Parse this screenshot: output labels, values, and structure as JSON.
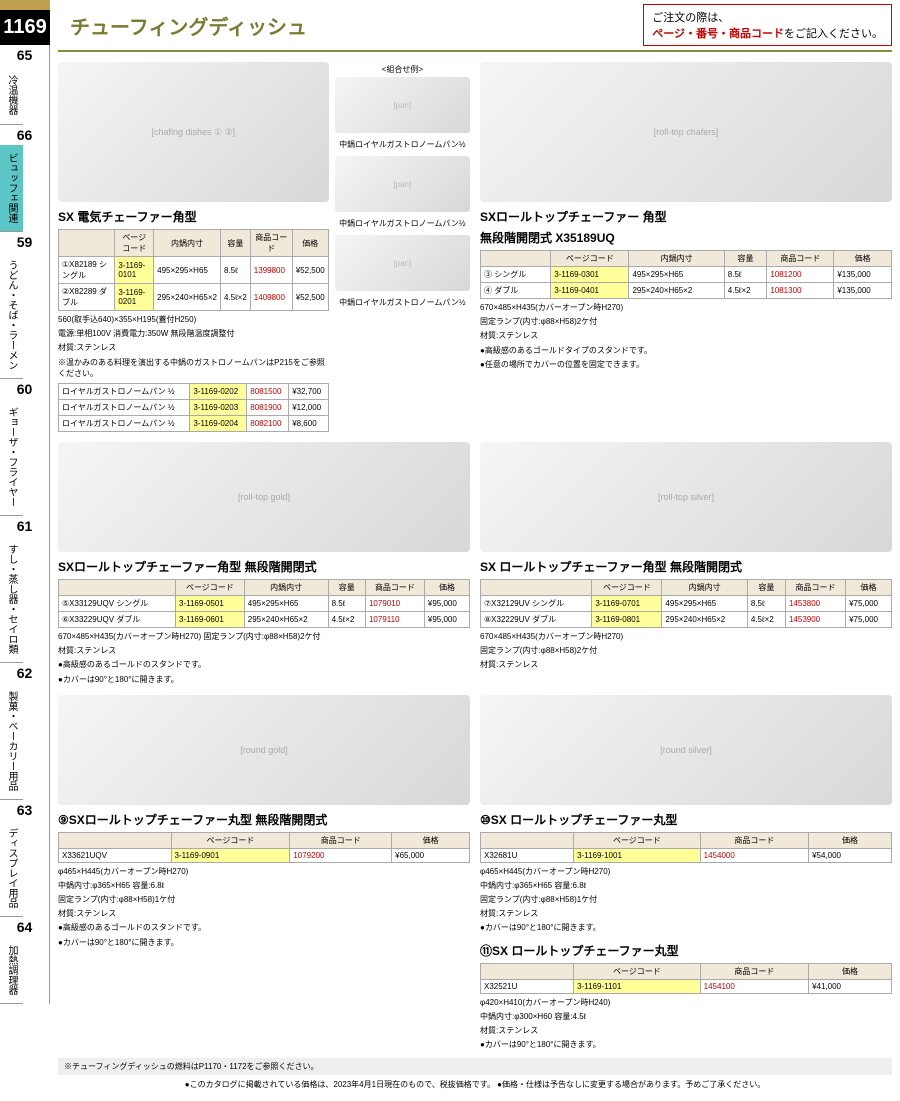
{
  "page_number": "1169",
  "header_title": "チューフィングディッシュ",
  "header_note_pre": "ご注文の際は、",
  "header_note_red": "ページ・番号・商品コード",
  "header_note_post": "をご記入ください。",
  "sidebar": [
    {
      "num": "65",
      "label": "冷温機器"
    },
    {
      "num": "66",
      "label": "ビュッフェ関連",
      "active": true
    },
    {
      "num": "59",
      "label": "うどん・そば・ラーメン"
    },
    {
      "num": "60",
      "label": "ギョーザ・フライヤー"
    },
    {
      "num": "61",
      "label": "すし・蒸し器・セイロ類"
    },
    {
      "num": "62",
      "label": "製菓・ベーカリー用品"
    },
    {
      "num": "63",
      "label": "ディスプレイ用品"
    },
    {
      "num": "64",
      "label": "加熱調理器"
    }
  ],
  "col_headers": {
    "page_code": "ページコード",
    "inner": "内鍋内寸",
    "cap": "容量",
    "pcode": "商品コード",
    "price": "価格"
  },
  "combo_label": "<組合せ例>",
  "sub_labels": [
    "中鍋ロイヤルガストロノームパン½",
    "中鍋ロイヤルガストロノームパン½",
    "中鍋ロイヤルガストロノームパン½"
  ],
  "p1": {
    "title": "SX 電気チェーファー角型",
    "rows": [
      {
        "n": "①",
        "code": "X82189",
        "type": "シングル",
        "pc": "3-1169-0101",
        "dim": "495×295×H65",
        "cap": "8.5ℓ",
        "pcod": "1399800",
        "price": "¥52,500"
      },
      {
        "n": "②",
        "code": "X82289",
        "type": "ダブル",
        "pc": "3-1169-0201",
        "dim": "295×240×H65×2",
        "cap": "4.5ℓ×2",
        "pcod": "1409800",
        "price": "¥52,500"
      }
    ],
    "spec1": "560(取手込640)×355×H195(蓋付H250)",
    "spec2": "電源:単相100V 消費電力:350W 無段階温度調整付",
    "spec3": "材質:ステンレス",
    "spec4": "※温かみのある料理を演出する中鍋のガストロノームパンはP215をご参照ください。",
    "extras": [
      {
        "name": "ロイヤルガストロノームパン ½",
        "pc": "3-1169-0202",
        "pcod": "8081500",
        "price": "¥32,700"
      },
      {
        "name": "ロイヤルガストロノームパン ½",
        "pc": "3-1169-0203",
        "pcod": "8081900",
        "price": "¥12,000"
      },
      {
        "name": "ロイヤルガストロノームパン ½",
        "pc": "3-1169-0204",
        "pcod": "8082100",
        "price": "¥8,600"
      }
    ]
  },
  "p2": {
    "title1": "SXロールトップチェーファー 角型",
    "title2": "無段階開閉式 X35189UQ",
    "rows": [
      {
        "n": "③",
        "type": "シングル",
        "pc": "3-1169-0301",
        "dim": "495×295×H65",
        "cap": "8.5ℓ",
        "pcod": "1081200",
        "price": "¥135,000"
      },
      {
        "n": "④",
        "type": "ダブル",
        "pc": "3-1169-0401",
        "dim": "295×240×H65×2",
        "cap": "4.5ℓ×2",
        "pcod": "1081300",
        "price": "¥135,000"
      }
    ],
    "spec1": "670×485×H435(カバーオープン時H270)",
    "spec2": "固定ランプ(内寸:φ88×H58)2ケ付",
    "spec3": "材質:ステンレス",
    "spec4": "●高級感のあるゴールドタイプのスタンドです。",
    "spec5": "●任意の場所でカバーの位置を固定できます。"
  },
  "p3": {
    "title": "SXロールトップチェーファー角型 無段階開閉式",
    "rows": [
      {
        "n": "⑤",
        "code": "X33129UQV",
        "type": "シングル",
        "pc": "3-1169-0501",
        "dim": "495×295×H65",
        "cap": "8.5ℓ",
        "pcod": "1079010",
        "price": "¥95,000"
      },
      {
        "n": "⑥",
        "code": "X33229UQV",
        "type": "ダブル",
        "pc": "3-1169-0601",
        "dim": "295×240×H65×2",
        "cap": "4.5ℓ×2",
        "pcod": "1079110",
        "price": "¥95,000"
      }
    ],
    "spec1": "670×485×H435(カバーオープン時H270) 固定ランプ(内寸:φ88×H58)2ケ付",
    "spec2": "材質:ステンレス",
    "spec3": "●高級感のあるゴールドのスタンドです。",
    "spec4": "●カバーは90°と180°に開きます。"
  },
  "p4": {
    "title": "SX ロールトップチェーファー角型 無段階開閉式",
    "rows": [
      {
        "n": "⑦",
        "code": "X32129UV",
        "type": "シングル",
        "pc": "3-1169-0701",
        "dim": "495×295×H65",
        "cap": "8.5ℓ",
        "pcod": "1453800",
        "price": "¥75,000"
      },
      {
        "n": "⑧",
        "code": "X32229UV",
        "type": "ダブル",
        "pc": "3-1169-0801",
        "dim": "295×240×H65×2",
        "cap": "4.5ℓ×2",
        "pcod": "1453900",
        "price": "¥75,000"
      }
    ],
    "spec1": "670×485×H435(カバーオープン時H270)",
    "spec2": "固定ランプ(内寸:φ88×H58)2ケ付",
    "spec3": "材質:ステンレス"
  },
  "p5": {
    "title": "⑨SXロールトップチェーファー丸型 無段階開閉式",
    "rows": [
      {
        "code": "X33621UQV",
        "pc": "3-1169-0901",
        "pcod": "1079200",
        "price": "¥65,000"
      }
    ],
    "spec1": "φ465×H445(カバーオープン時H270)",
    "spec2": "中鍋内寸:φ365×H65 容量:6.8ℓ",
    "spec3": "固定ランプ(内寸:φ88×H58)1ケ付",
    "spec4": "材質:ステンレス",
    "spec5": "●高級感のあるゴールドのスタンドです。",
    "spec6": "●カバーは90°と180°に開きます。"
  },
  "p6": {
    "title": "⑩SX ロールトップチェーファー丸型",
    "rows": [
      {
        "code": "X32681U",
        "pc": "3-1169-1001",
        "pcod": "1454000",
        "price": "¥54,000"
      }
    ],
    "spec1": "φ465×H445(カバーオープン時H270)",
    "spec2": "中鍋内寸:φ365×H65 容量:6.8ℓ",
    "spec3": "固定ランプ(内寸:φ88×H58)1ケ付",
    "spec4": "材質:ステンレス",
    "spec5": "●カバーは90°と180°に開きます。"
  },
  "p7": {
    "title": "⑪SX ロールトップチェーファー丸型",
    "rows": [
      {
        "code": "X32521U",
        "pc": "3-1169-1101",
        "pcod": "1454100",
        "price": "¥41,000"
      }
    ],
    "spec1": "φ420×H410(カバーオープン時H240)",
    "spec2": "中鍋内寸:φ300×H60 容量:4.5ℓ",
    "spec3": "材質:ステンレス",
    "spec4": "●カバーは90°と180°に開きます。"
  },
  "footer_note": "※チューフィングディッシュの燃料はP1170・1172をご参照ください。",
  "footer_line": "●このカタログに掲載されている価格は、2023年4月1日現在のもので、税抜価格です。 ●価格・仕様は予告なしに変更する場合があります。予めご了承ください。"
}
